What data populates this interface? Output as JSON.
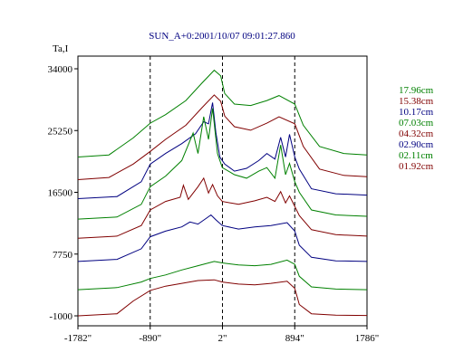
{
  "chart_data": {
    "type": "line",
    "title": "SUN_A+0:2001/10/07 09:01:27.860",
    "ylabel": "Ta,I",
    "xlabel": "",
    "x_ticks": [
      {
        "value": -1782,
        "label": "-1782\""
      },
      {
        "value": -890,
        "label": "-890\""
      },
      {
        "value": 2,
        "label": "2\""
      },
      {
        "value": 894,
        "label": "894\""
      },
      {
        "value": 1786,
        "label": "1786\""
      }
    ],
    "y_ticks": [
      {
        "value": -1000,
        "label": "-1000"
      },
      {
        "value": 7750,
        "label": "7750"
      },
      {
        "value": 16500,
        "label": "16500"
      },
      {
        "value": 25250,
        "label": "25250"
      },
      {
        "value": 34000,
        "label": "34000"
      }
    ],
    "xlim": [
      -1782,
      1786
    ],
    "ylim": [
      -1000,
      37000
    ],
    "vlines": [
      -890,
      2,
      894
    ],
    "grid": false,
    "legend_position": "right",
    "series": [
      {
        "name": "17.96cm",
        "color": "#008000",
        "points": [
          [
            -1782,
            21500
          ],
          [
            -1400,
            21800
          ],
          [
            -1100,
            24200
          ],
          [
            -890,
            26300
          ],
          [
            -700,
            27500
          ],
          [
            -450,
            29500
          ],
          [
            -250,
            32000
          ],
          [
            -100,
            33800
          ],
          [
            -20,
            33000
          ],
          [
            30,
            30500
          ],
          [
            150,
            29000
          ],
          [
            350,
            28800
          ],
          [
            550,
            29500
          ],
          [
            700,
            30200
          ],
          [
            894,
            29000
          ],
          [
            1000,
            26000
          ],
          [
            1200,
            23000
          ],
          [
            1500,
            22000
          ],
          [
            1786,
            21800
          ]
        ]
      },
      {
        "name": "15.38cm",
        "color": "#800000",
        "points": [
          [
            -1782,
            18300
          ],
          [
            -1400,
            18600
          ],
          [
            -1100,
            20500
          ],
          [
            -890,
            22300
          ],
          [
            -700,
            24000
          ],
          [
            -450,
            26000
          ],
          [
            -250,
            28500
          ],
          [
            -100,
            30300
          ],
          [
            -20,
            29400
          ],
          [
            30,
            27300
          ],
          [
            150,
            25800
          ],
          [
            350,
            25300
          ],
          [
            550,
            26300
          ],
          [
            700,
            27200
          ],
          [
            894,
            26200
          ],
          [
            1000,
            23000
          ],
          [
            1200,
            19800
          ],
          [
            1500,
            18900
          ],
          [
            1786,
            18700
          ]
        ]
      },
      {
        "name": "10.17cm",
        "color": "#000080",
        "points": [
          [
            -1782,
            15600
          ],
          [
            -1300,
            15900
          ],
          [
            -1000,
            18000
          ],
          [
            -890,
            20500
          ],
          [
            -700,
            22000
          ],
          [
            -500,
            23400
          ],
          [
            -330,
            24800
          ],
          [
            -230,
            26500
          ],
          [
            -170,
            26200
          ],
          [
            -120,
            29200
          ],
          [
            -80,
            25000
          ],
          [
            -30,
            21500
          ],
          [
            30,
            20500
          ],
          [
            150,
            19500
          ],
          [
            300,
            19900
          ],
          [
            450,
            21000
          ],
          [
            550,
            22000
          ],
          [
            650,
            21200
          ],
          [
            720,
            24300
          ],
          [
            780,
            21500
          ],
          [
            830,
            24700
          ],
          [
            894,
            21500
          ],
          [
            950,
            19800
          ],
          [
            1100,
            17000
          ],
          [
            1400,
            16300
          ],
          [
            1786,
            16100
          ]
        ]
      },
      {
        "name": "07.03cm",
        "color": "#008000",
        "points": [
          [
            -1782,
            12700
          ],
          [
            -1300,
            13000
          ],
          [
            -1000,
            14800
          ],
          [
            -890,
            17300
          ],
          [
            -700,
            18800
          ],
          [
            -500,
            21000
          ],
          [
            -360,
            24900
          ],
          [
            -300,
            22000
          ],
          [
            -230,
            27200
          ],
          [
            -170,
            24000
          ],
          [
            -120,
            28400
          ],
          [
            -60,
            22000
          ],
          [
            0,
            20000
          ],
          [
            150,
            19000
          ],
          [
            300,
            18500
          ],
          [
            450,
            19500
          ],
          [
            550,
            20000
          ],
          [
            650,
            18500
          ],
          [
            720,
            23200
          ],
          [
            780,
            19000
          ],
          [
            830,
            20600
          ],
          [
            894,
            18000
          ],
          [
            950,
            16500
          ],
          [
            1100,
            14000
          ],
          [
            1400,
            13300
          ],
          [
            1786,
            13100
          ]
        ]
      },
      {
        "name": "04.32cm",
        "color": "#800000",
        "points": [
          [
            -1782,
            10000
          ],
          [
            -1300,
            10300
          ],
          [
            -1000,
            11800
          ],
          [
            -890,
            14000
          ],
          [
            -700,
            15200
          ],
          [
            -520,
            15800
          ],
          [
            -480,
            17500
          ],
          [
            -420,
            15500
          ],
          [
            -300,
            17300
          ],
          [
            -230,
            18500
          ],
          [
            -170,
            16400
          ],
          [
            -120,
            17600
          ],
          [
            -60,
            16000
          ],
          [
            0,
            15200
          ],
          [
            200,
            14800
          ],
          [
            400,
            15300
          ],
          [
            550,
            15800
          ],
          [
            650,
            15200
          ],
          [
            720,
            16600
          ],
          [
            780,
            15000
          ],
          [
            830,
            16000
          ],
          [
            894,
            14500
          ],
          [
            950,
            13200
          ],
          [
            1100,
            11200
          ],
          [
            1400,
            10500
          ],
          [
            1786,
            10300
          ]
        ]
      },
      {
        "name": "02.90cm",
        "color": "#000080",
        "points": [
          [
            -1782,
            6700
          ],
          [
            -1300,
            7000
          ],
          [
            -1000,
            8500
          ],
          [
            -890,
            10200
          ],
          [
            -700,
            11000
          ],
          [
            -500,
            11600
          ],
          [
            -400,
            12300
          ],
          [
            -300,
            12000
          ],
          [
            -200,
            12800
          ],
          [
            -140,
            13300
          ],
          [
            -80,
            12600
          ],
          [
            0,
            11800
          ],
          [
            200,
            11300
          ],
          [
            400,
            11600
          ],
          [
            600,
            11800
          ],
          [
            800,
            12200
          ],
          [
            894,
            11000
          ],
          [
            950,
            9000
          ],
          [
            1100,
            7300
          ],
          [
            1400,
            6800
          ],
          [
            1786,
            6700
          ]
        ]
      },
      {
        "name": "02.11cm",
        "color": "#008000",
        "points": [
          [
            -1782,
            2700
          ],
          [
            -1300,
            3000
          ],
          [
            -1000,
            3800
          ],
          [
            -890,
            4300
          ],
          [
            -700,
            4800
          ],
          [
            -500,
            5500
          ],
          [
            -300,
            6100
          ],
          [
            -100,
            6700
          ],
          [
            0,
            6500
          ],
          [
            200,
            6200
          ],
          [
            400,
            6100
          ],
          [
            600,
            6300
          ],
          [
            800,
            6900
          ],
          [
            894,
            6300
          ],
          [
            950,
            4600
          ],
          [
            1100,
            3100
          ],
          [
            1400,
            2800
          ],
          [
            1786,
            2700
          ]
        ]
      },
      {
        "name": "01.92cm",
        "color": "#800000",
        "points": [
          [
            -1782,
            -1000
          ],
          [
            -1300,
            -700
          ],
          [
            -1100,
            1100
          ],
          [
            -890,
            2600
          ],
          [
            -700,
            3200
          ],
          [
            -500,
            3600
          ],
          [
            -300,
            4000
          ],
          [
            -100,
            4100
          ],
          [
            0,
            3800
          ],
          [
            200,
            3500
          ],
          [
            400,
            3400
          ],
          [
            600,
            3600
          ],
          [
            800,
            3900
          ],
          [
            894,
            2900
          ],
          [
            950,
            600
          ],
          [
            1100,
            -700
          ],
          [
            1400,
            -900
          ],
          [
            1786,
            -950
          ]
        ]
      }
    ]
  }
}
